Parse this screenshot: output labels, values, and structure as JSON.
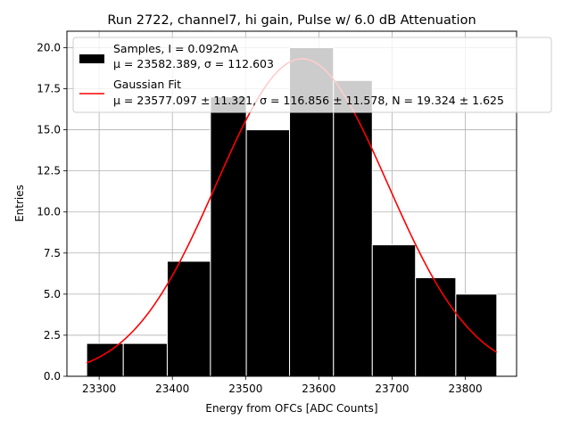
{
  "chart_data": {
    "type": "bar",
    "title": "Run 2722, channel7, hi gain, Pulse w/ 6.0 dB Attenuation",
    "xlabel": "Energy from OFCs [ADC Counts]",
    "ylabel": "Entries",
    "xlim": [
      23256,
      23870
    ],
    "ylim": [
      0,
      21
    ],
    "xticks": [
      "23300",
      "23400",
      "23500",
      "23600",
      "23700",
      "23800"
    ],
    "yticks": [
      "0.0",
      "2.5",
      "5.0",
      "7.5",
      "10.0",
      "12.5",
      "15.0",
      "17.5",
      "20.0"
    ],
    "grid": true,
    "legend_position": "top-right",
    "bins": [
      {
        "x0": 23283,
        "x1": 23333,
        "count": 2
      },
      {
        "x0": 23333,
        "x1": 23393,
        "count": 2
      },
      {
        "x0": 23393,
        "x1": 23452,
        "count": 7
      },
      {
        "x0": 23452,
        "x1": 23501,
        "count": 17
      },
      {
        "x0": 23501,
        "x1": 23560,
        "count": 15
      },
      {
        "x0": 23560,
        "x1": 23620,
        "count": 20
      },
      {
        "x0": 23620,
        "x1": 23673,
        "count": 18
      },
      {
        "x0": 23673,
        "x1": 23732,
        "count": 8
      },
      {
        "x0": 23732,
        "x1": 23787,
        "count": 6
      },
      {
        "x0": 23787,
        "x1": 23843,
        "count": 5
      }
    ],
    "series": [
      {
        "name": "Samples, I = 0.092mA",
        "stats": "μ = 23582.389, σ = 112.603",
        "color": "#000000"
      },
      {
        "name": "Gaussian Fit",
        "stats": "μ = 23577.097 ± 11.321, σ = 116.856 ± 11.578, N = 19.324 ± 1.625",
        "color": "#ff0000"
      }
    ],
    "fit": {
      "mu": 23577.097,
      "sigma": 116.856,
      "N": 19.324,
      "xmin": 23283,
      "xmax": 23843
    }
  }
}
